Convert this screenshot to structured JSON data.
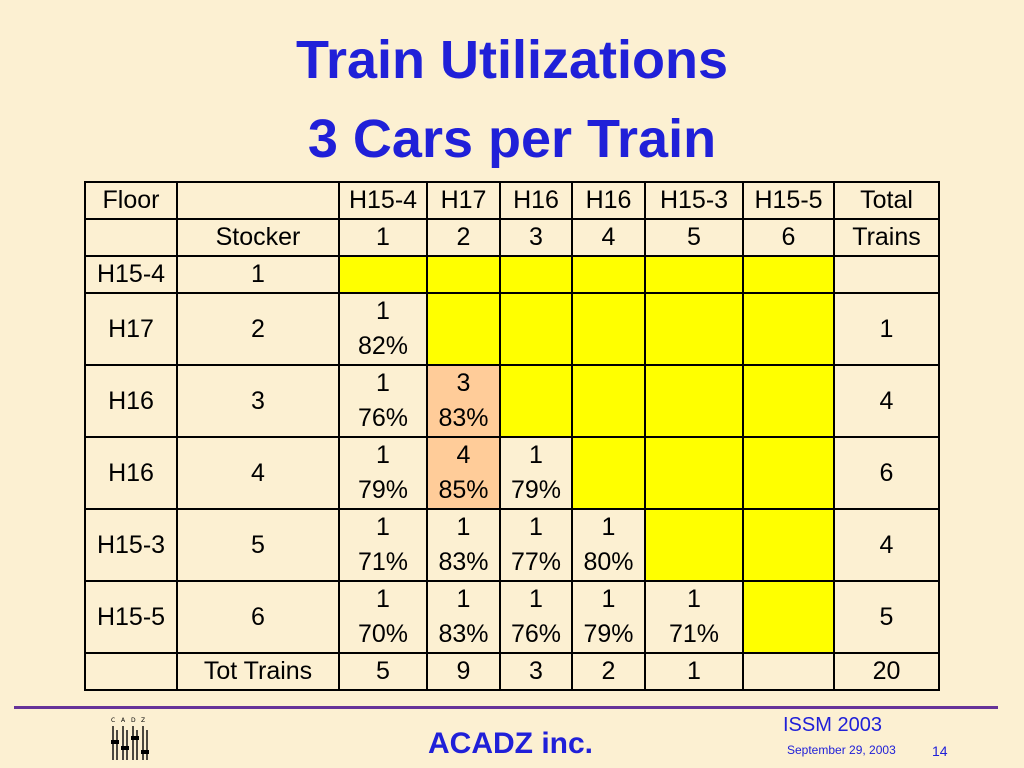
{
  "title": {
    "line1": "Train Utilizations",
    "line2": "3 Cars per Train"
  },
  "table": {
    "header": [
      "Floor",
      "",
      "H15-4",
      "H17",
      "H16",
      "H16",
      "H15-3",
      "H15-5",
      "Total"
    ],
    "subheader": [
      "",
      "Stocker",
      "1",
      "2",
      "3",
      "4",
      "5",
      "6",
      "Trains"
    ],
    "rows": [
      {
        "floor": "H15-4",
        "stocker": "1",
        "cells": [
          [
            "",
            ""
          ],
          [
            "",
            ""
          ],
          [
            "",
            ""
          ],
          [
            "",
            ""
          ],
          [
            "",
            ""
          ],
          [
            "",
            ""
          ]
        ],
        "total": ""
      },
      {
        "floor": "H17",
        "stocker": "2",
        "cells": [
          [
            "1",
            "82%"
          ],
          [
            "",
            ""
          ],
          [
            "",
            ""
          ],
          [
            "",
            ""
          ],
          [
            "",
            ""
          ],
          [
            "",
            ""
          ]
        ],
        "total": "1"
      },
      {
        "floor": "H16",
        "stocker": "3",
        "cells": [
          [
            "1",
            "76%"
          ],
          [
            "3",
            "83%"
          ],
          [
            "",
            ""
          ],
          [
            "",
            ""
          ],
          [
            "",
            ""
          ],
          [
            "",
            ""
          ]
        ],
        "total": "4"
      },
      {
        "floor": "H16",
        "stocker": "4",
        "cells": [
          [
            "1",
            "79%"
          ],
          [
            "4",
            "85%"
          ],
          [
            "1",
            "79%"
          ],
          [
            "",
            ""
          ],
          [
            "",
            ""
          ],
          [
            "",
            ""
          ]
        ],
        "total": "6"
      },
      {
        "floor": "H15-3",
        "stocker": "5",
        "cells": [
          [
            "1",
            "71%"
          ],
          [
            "1",
            "83%"
          ],
          [
            "1",
            "77%"
          ],
          [
            "1",
            "80%"
          ],
          [
            "",
            ""
          ],
          [
            "",
            ""
          ]
        ],
        "total": "4"
      },
      {
        "floor": "H15-5",
        "stocker": "6",
        "cells": [
          [
            "1",
            "70%"
          ],
          [
            "1",
            "83%"
          ],
          [
            "1",
            "76%"
          ],
          [
            "1",
            "79%"
          ],
          [
            "1",
            "71%"
          ],
          [
            "",
            ""
          ]
        ],
        "total": "5"
      }
    ],
    "footer": {
      "label": "Tot Trains",
      "values": [
        "5",
        "9",
        "3",
        "2",
        "1",
        ""
      ],
      "total": "20"
    }
  },
  "footer": {
    "brand": "ACADZ inc.",
    "conference": "ISSM 2003",
    "date": "September 29, 2003",
    "page": "14",
    "logo_letters": [
      "C",
      "A",
      "D",
      "Z"
    ]
  },
  "colors": {
    "background": "#fcf0d2",
    "title": "#2020d8",
    "yellow_cell": "#ffff00",
    "highlight_cell": "#ffcc99",
    "rule": "#663399"
  }
}
